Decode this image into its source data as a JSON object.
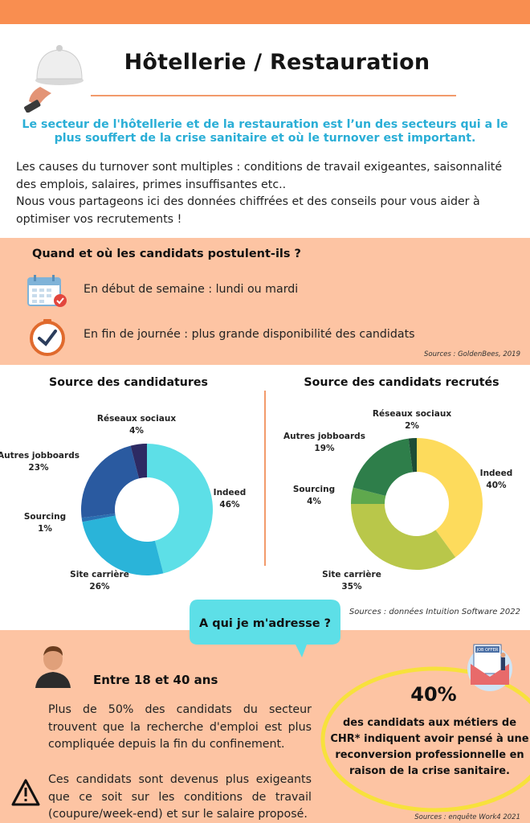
{
  "header": {
    "title": "Hôtellerie / Restauration",
    "lead": "Le secteur de l'hôtellerie et de la restauration est l’un des secteurs qui a le plus souffert de la crise sanitaire et où le turnover est important.",
    "intro_1": "Les causes du turnover sont multiples : conditions de travail exigeantes, saisonnalité des emplois, salaires, primes insuffisantes etc..",
    "intro_2": "Nous vous partageons ici des données chiffrées et des conseils pour vous aider à optimiser vos recrutements !"
  },
  "when": {
    "heading": "Quand et où les candidats postulent-ils ?",
    "row_1": "En début de semaine : lundi ou mardi",
    "row_2": "En fin de journée : plus grande disponibilité des candidats",
    "source": "Sources : GoldenBees, 2019"
  },
  "charts_source": "Sources : données Intuition Software 2022",
  "chart_data": [
    {
      "type": "pie",
      "title": "Source des candidatures",
      "categories": [
        "Indeed",
        "Site carrière",
        "Sourcing",
        "Autres jobboards",
        "Réseaux sociaux"
      ],
      "values": [
        46,
        26,
        1,
        23,
        4
      ],
      "labels": [
        "46%",
        "26%",
        "1%",
        "23%",
        "4%"
      ],
      "colors": [
        "#5ddfe7",
        "#2ab4d9",
        "#2a6fb2",
        "#2a5aa0",
        "#2d2a63"
      ]
    },
    {
      "type": "pie",
      "title": "Source des candidats recrutés",
      "categories": [
        "Indeed",
        "Site carrière",
        "Sourcing",
        "Autres jobboards",
        "Réseaux sociaux"
      ],
      "values": [
        40,
        35,
        4,
        19,
        2
      ],
      "labels": [
        "40%",
        "35%",
        "4%",
        "19%",
        "2%"
      ],
      "colors": [
        "#fddb5c",
        "#b9c74a",
        "#5fa84d",
        "#2e7e4a",
        "#1d4d36"
      ]
    }
  ],
  "who": {
    "bubble": "A qui je m'adresse ?",
    "age": "Entre 18 et 40 ans",
    "p1": "Plus de 50% des candidats du secteur trouvent que la recherche d'emploi est plus compliquée depuis la fin du confinement.",
    "p2": "Ces candidats sont devenus plus exigeants que ce soit sur les conditions de travail (coupure/week-end) et sur le salaire proposé.",
    "pct": "40%",
    "stat": "des candidats aux métiers de CHR* indiquent avoir pensé à une reconversion professionnelle  en raison de la crise sanitaire.",
    "job_badge": "JOB OFFER",
    "source": "Sources : enquête Work4 2021"
  },
  "colors": {
    "orange": "#f98e50",
    "peach": "#fdc4a3",
    "teal_text": "#2aaed6",
    "ring": "#f7e13c"
  }
}
